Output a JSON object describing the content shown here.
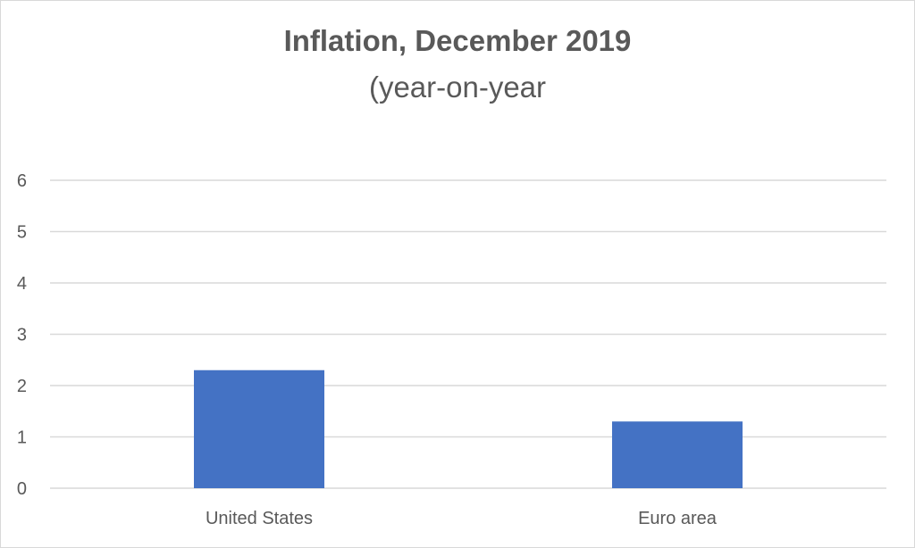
{
  "chart_data": {
    "type": "bar",
    "title": "Inflation, December 2019",
    "subtitle": "(year-on-year",
    "categories": [
      "United States",
      "Euro area"
    ],
    "values": [
      2.3,
      1.3
    ],
    "xlabel": "",
    "ylabel": "",
    "ylim": [
      0,
      6
    ],
    "yticks": [
      0,
      1,
      2,
      3,
      4,
      5,
      6
    ],
    "grid": true,
    "legend": "none",
    "bar_color": "#4472c4",
    "grid_color": "#d9d9d9",
    "text_color": "#595959"
  }
}
